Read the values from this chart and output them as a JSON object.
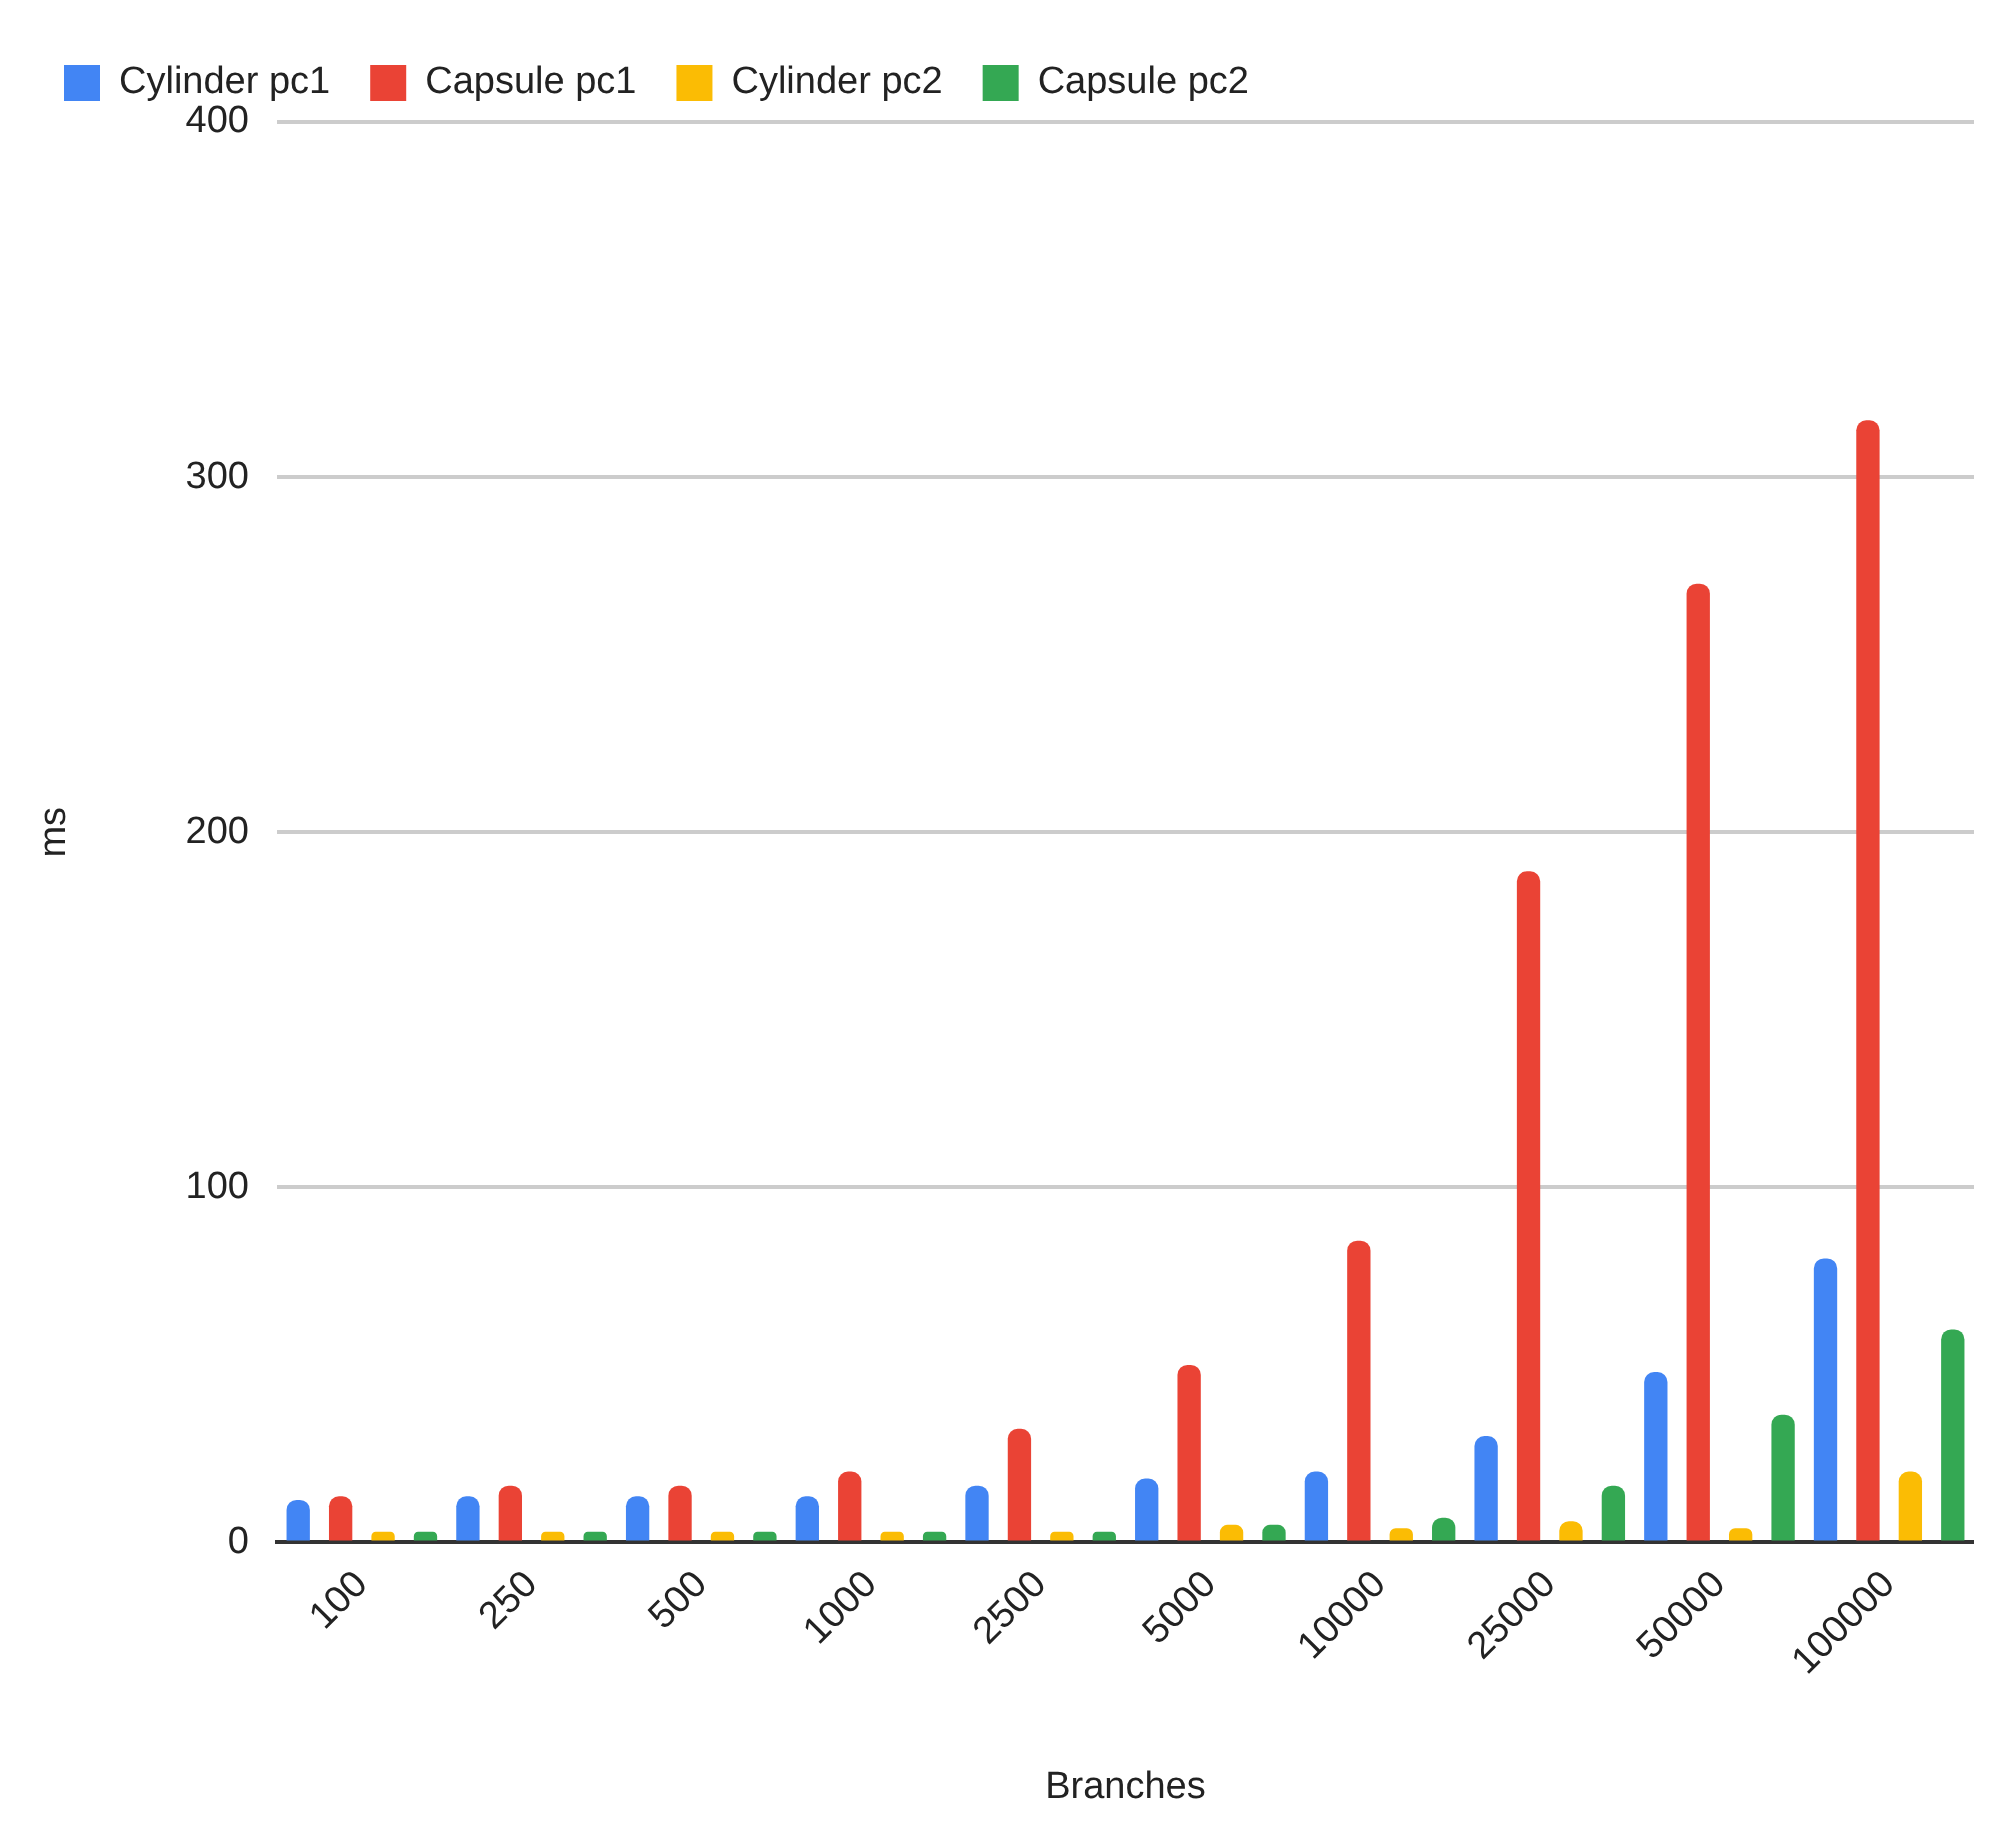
{
  "chart_data": {
    "type": "bar",
    "xlabel": "Branches",
    "ylabel": "ms",
    "categories": [
      "100",
      "250",
      "500",
      "1000",
      "2500",
      "5000",
      "10000",
      "25000",
      "50000",
      "100000"
    ],
    "series": [
      {
        "name": "Cylinder pc1",
        "color": "#4285f4",
        "values": [
          12,
          13,
          13,
          13,
          16,
          18,
          20,
          30,
          48,
          80
        ]
      },
      {
        "name": "Capsule pc1",
        "color": "#ea4335",
        "values": [
          13,
          16,
          16,
          20,
          32,
          50,
          85,
          189,
          270,
          316
        ]
      },
      {
        "name": "Cylinder pc2",
        "color": "#fbbc04",
        "values": [
          3,
          3,
          3,
          3,
          3,
          5,
          4,
          6,
          4,
          20
        ]
      },
      {
        "name": "Capsule pc2",
        "color": "#34a853",
        "values": [
          3,
          3,
          3,
          3,
          3,
          5,
          7,
          16,
          36,
          60
        ]
      }
    ],
    "ylim": [
      0,
      400
    ],
    "yticks": [
      0,
      100,
      200,
      300,
      400
    ],
    "grid": "y",
    "legend": "top left"
  }
}
